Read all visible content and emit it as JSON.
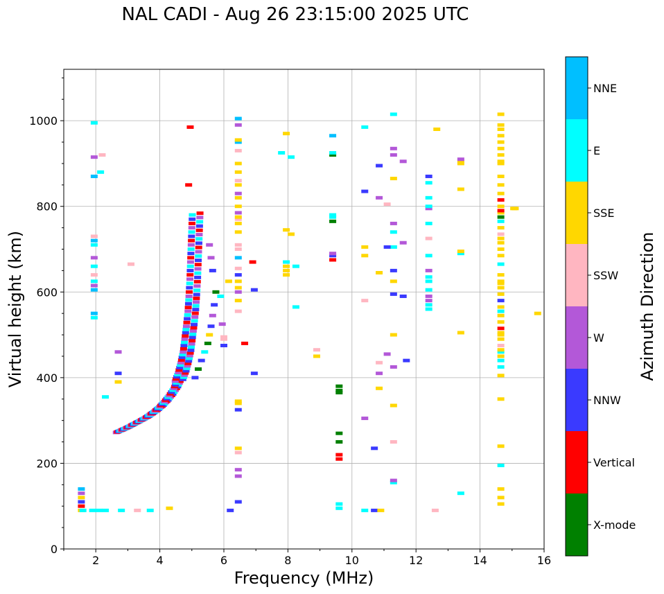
{
  "title": "NAL CADI - Aug 26 23:15:00 2025 UTC",
  "colors": {
    "X-mode": "#008000",
    "Vertical": "#ff0000",
    "NNW": "#3a3aff",
    "W": "#b358d8",
    "SSW": "#ffb6c1",
    "SSE": "#ffd700",
    "E": "#00ffff",
    "NNE": "#00bfff"
  },
  "chart_data": {
    "type": "scatter",
    "title": "NAL CADI - Aug 26 23:15:00 2025 UTC",
    "xlabel": "Frequency (MHz)",
    "ylabel": "Virtual height (km)",
    "xlim": [
      1,
      16
    ],
    "ylim": [
      0,
      1120
    ],
    "xticks": [
      "2",
      "4",
      "6",
      "8",
      "10",
      "12",
      "14",
      "16"
    ],
    "yticks": [
      "0",
      "200",
      "400",
      "600",
      "800",
      "1000"
    ],
    "grid": true,
    "colorbar": {
      "label": "Azimuth Direction",
      "categories": [
        "X-mode",
        "Vertical",
        "NNW",
        "W",
        "SSW",
        "SSE",
        "E",
        "NNE"
      ]
    },
    "ftrace": {
      "points": [
        [
          2.7,
          272
        ],
        [
          2.85,
          277
        ],
        [
          3.0,
          282
        ],
        [
          3.15,
          288
        ],
        [
          3.3,
          294
        ],
        [
          3.45,
          300
        ],
        [
          3.6,
          306
        ],
        [
          3.75,
          314
        ],
        [
          3.9,
          322
        ],
        [
          4.05,
          332
        ],
        [
          4.2,
          344
        ],
        [
          4.35,
          358
        ],
        [
          4.5,
          375
        ],
        [
          4.6,
          392
        ],
        [
          4.7,
          412
        ],
        [
          4.78,
          435
        ],
        [
          4.85,
          460
        ],
        [
          4.9,
          490
        ],
        [
          4.95,
          520
        ],
        [
          5.0,
          555
        ],
        [
          5.03,
          590
        ],
        [
          5.06,
          630
        ],
        [
          5.08,
          670
        ],
        [
          5.1,
          710
        ],
        [
          5.12,
          750
        ],
        [
          5.14,
          790
        ]
      ],
      "cats": [
        "W",
        "SSW",
        "Vertical",
        "Vertical",
        "NNW",
        "SSE",
        "E",
        "NNE"
      ]
    },
    "secondary": {
      "points": [
        [
          5.1,
          400
        ],
        [
          5.2,
          420
        ],
        [
          5.3,
          440
        ],
        [
          5.4,
          460
        ],
        [
          5.5,
          480
        ],
        [
          5.55,
          500
        ],
        [
          5.6,
          520
        ],
        [
          5.65,
          545
        ],
        [
          5.7,
          570
        ],
        [
          5.75,
          600
        ]
      ],
      "cats": [
        "NNW",
        "X-mode",
        "NNW",
        "E",
        "X-mode",
        "SSE",
        "NNW",
        "W"
      ]
    },
    "lowecho": {
      "points": [
        [
          1.55,
          90
        ],
        [
          1.55,
          100
        ],
        [
          1.55,
          110
        ],
        [
          1.55,
          120
        ],
        [
          1.55,
          130
        ],
        [
          1.55,
          140
        ]
      ],
      "cats": [
        "SSE",
        "Vertical",
        "NNW",
        "SSE",
        "W",
        "NNE"
      ]
    },
    "baseline": {
      "points": [
        [
          1.6,
          90
        ],
        [
          1.9,
          90
        ],
        [
          2.1,
          90
        ],
        [
          2.3,
          90
        ],
        [
          2.8,
          90
        ],
        [
          3.3,
          90
        ],
        [
          3.7,
          90
        ],
        [
          4.3,
          95
        ],
        [
          6.2,
          90
        ],
        [
          10.4,
          90
        ],
        [
          10.7,
          90
        ],
        [
          10.9,
          90
        ],
        [
          12.6,
          90
        ]
      ],
      "cats": [
        "E",
        "E",
        "E",
        "E",
        "E",
        "SSW",
        "E",
        "SSE",
        "NNW",
        "E",
        "NNW",
        "SSE",
        "SSW"
      ]
    },
    "columns": [
      {
        "x": 1.95,
        "hs": [
          540,
          550,
          605,
          615,
          625,
          640,
          660,
          680,
          710,
          720,
          730,
          870,
          995,
          915
        ],
        "cats": [
          "E",
          "NNE",
          "NNE",
          "W",
          "E",
          "SSW",
          "E",
          "W",
          "E",
          "NNE",
          "SSW",
          "NNE",
          "E",
          "W"
        ]
      },
      {
        "x": 6.45,
        "hs": [
          110,
          170,
          185,
          225,
          235,
          325,
          340,
          345,
          555,
          580,
          600,
          610,
          625,
          640,
          655,
          680,
          700,
          710,
          740,
          760,
          770,
          775,
          785,
          800,
          820,
          830,
          850,
          860,
          880,
          900,
          930,
          950,
          955,
          990,
          1005
        ],
        "cats": [
          "NNW",
          "W",
          "W",
          "SSW",
          "SSE",
          "NNW",
          "SSE",
          "SSE",
          "SSW",
          "SSE",
          "W",
          "SSE",
          "SSE",
          "NNW",
          "SSW",
          "NNE",
          "SSW",
          "SSW",
          "SSE",
          "SSE",
          "SSW",
          "SSE",
          "W",
          "SSE",
          "SSE",
          "W",
          "SSE",
          "SSW",
          "SSE",
          "SSE",
          "SSW",
          "NNE",
          "SSE",
          "W",
          "NNE"
        ]
      },
      {
        "x": 7.95,
        "hs": [
          640,
          650,
          660,
          670,
          745,
          970
        ],
        "cats": [
          "SSE",
          "SSE",
          "SSE",
          "E",
          "SSE",
          "SSE"
        ]
      },
      {
        "x": 9.4,
        "hs": [
          675,
          685,
          690,
          765,
          775,
          780,
          920,
          925,
          965
        ],
        "cats": [
          "Vertical",
          "NNW",
          "W",
          "X-mode",
          "E",
          "E",
          "X-mode",
          "E",
          "NNE"
        ]
      },
      {
        "x": 9.6,
        "hs": [
          95,
          105,
          210,
          220,
          250,
          270,
          365,
          370,
          380
        ],
        "cats": [
          "E",
          "E",
          "Vertical",
          "Vertical",
          "X-mode",
          "X-mode",
          "X-mode",
          "X-mode",
          "X-mode"
        ]
      },
      {
        "x": 11.3,
        "hs": [
          155,
          160,
          250,
          335,
          425,
          500,
          595,
          625,
          650,
          705,
          740,
          760,
          865,
          920,
          935,
          1015
        ],
        "cats": [
          "E",
          "W",
          "SSW",
          "SSE",
          "W",
          "SSE",
          "NNW",
          "SSE",
          "NNW",
          "E",
          "E",
          "W",
          "SSE",
          "W",
          "W",
          "E"
        ]
      },
      {
        "x": 12.4,
        "hs": [
          560,
          570,
          580,
          590,
          605,
          625,
          635,
          650,
          685,
          725,
          760,
          795,
          800,
          820,
          855,
          870
        ],
        "cats": [
          "E",
          "E",
          "W",
          "W",
          "E",
          "E",
          "E",
          "W",
          "E",
          "SSW",
          "E",
          "W",
          "E",
          "E",
          "E",
          "NNW"
        ]
      },
      {
        "x": 13.4,
        "hs": [
          130,
          505,
          690,
          695,
          840,
          900,
          905,
          910
        ],
        "cats": [
          "E",
          "SSE",
          "E",
          "SSE",
          "SSE",
          "SSE",
          "SSE",
          "W"
        ]
      },
      {
        "x": 14.65,
        "hs": [
          105,
          120,
          140,
          195,
          240,
          350,
          405,
          425,
          440,
          450,
          460,
          465,
          475,
          490,
          500,
          505,
          515,
          530,
          545,
          555,
          565,
          580,
          595,
          610,
          620,
          625,
          640,
          665,
          685,
          700,
          715,
          725,
          735,
          750,
          765,
          775,
          785,
          790,
          800,
          815,
          830,
          850,
          870,
          900,
          905,
          920,
          935,
          950,
          965,
          980,
          990,
          1015
        ],
        "cats": [
          "SSE",
          "SSE",
          "SSE",
          "E",
          "SSE",
          "SSE",
          "SSE",
          "E",
          "E",
          "SSE",
          "E",
          "SSE",
          "SSW",
          "SSE",
          "SSE",
          "SSE",
          "Vertical",
          "SSE",
          "SSE",
          "E",
          "SSE",
          "NNW",
          "SSE",
          "SSE",
          "SSE",
          "SSE",
          "SSE",
          "E",
          "SSE",
          "SSE",
          "SSE",
          "SSE",
          "SSW",
          "SSE",
          "E",
          "X-mode",
          "SSE",
          "Vertical",
          "SSE",
          "Vertical",
          "SSE",
          "SSE",
          "SSE",
          "SSE",
          "SSE",
          "SSE",
          "SSE",
          "SSE",
          "SSE",
          "SSE",
          "SSE",
          "SSE"
        ]
      }
    ],
    "scatter": {
      "points": [
        [
          2.3,
          355
        ],
        [
          2.7,
          390
        ],
        [
          2.7,
          410
        ],
        [
          2.7,
          460
        ],
        [
          3.1,
          665
        ],
        [
          2.2,
          920
        ],
        [
          2.15,
          880
        ],
        [
          4.9,
          850
        ],
        [
          4.95,
          985
        ],
        [
          5.55,
          710
        ],
        [
          5.6,
          680
        ],
        [
          5.65,
          650
        ],
        [
          5.9,
          590
        ],
        [
          5.95,
          525
        ],
        [
          6.0,
          475
        ],
        [
          6.0,
          490
        ],
        [
          6.0,
          495
        ],
        [
          6.15,
          625
        ],
        [
          6.65,
          480
        ],
        [
          6.9,
          670
        ],
        [
          6.95,
          605
        ],
        [
          6.95,
          410
        ],
        [
          7.8,
          925
        ],
        [
          8.1,
          915
        ],
        [
          8.1,
          735
        ],
        [
          8.25,
          660
        ],
        [
          8.25,
          565
        ],
        [
          8.9,
          450
        ],
        [
          8.9,
          465
        ],
        [
          10.4,
          305
        ],
        [
          10.4,
          580
        ],
        [
          10.4,
          685
        ],
        [
          10.4,
          705
        ],
        [
          10.4,
          835
        ],
        [
          10.4,
          985
        ],
        [
          10.7,
          235
        ],
        [
          10.85,
          375
        ],
        [
          10.85,
          410
        ],
        [
          10.85,
          435
        ],
        [
          10.85,
          645
        ],
        [
          10.85,
          820
        ],
        [
          10.85,
          895
        ],
        [
          11.1,
          455
        ],
        [
          11.1,
          705
        ],
        [
          11.1,
          805
        ],
        [
          11.6,
          590
        ],
        [
          11.6,
          715
        ],
        [
          11.6,
          905
        ],
        [
          11.7,
          440
        ],
        [
          12.65,
          980
        ],
        [
          15.05,
          795
        ],
        [
          15.1,
          795
        ],
        [
          15.8,
          550
        ]
      ],
      "cats": [
        "E",
        "SSE",
        "NNW",
        "W",
        "SSW",
        "SSW",
        "E",
        "Vertical",
        "Vertical",
        "W",
        "W",
        "NNW",
        "E",
        "W",
        "NNW",
        "SSW",
        "SSW",
        "SSE",
        "Vertical",
        "Vertical",
        "NNW",
        "NNW",
        "E",
        "E",
        "SSE",
        "E",
        "E",
        "SSE",
        "SSW",
        "W",
        "SSW",
        "SSE",
        "SSE",
        "NNW",
        "E",
        "NNW",
        "SSE",
        "W",
        "SSW",
        "SSE",
        "W",
        "NNW",
        "W",
        "NNW",
        "SSW",
        "NNW",
        "W",
        "W",
        "NNW",
        "SSE",
        "SSE",
        "SSE",
        "SSE"
      ]
    }
  }
}
